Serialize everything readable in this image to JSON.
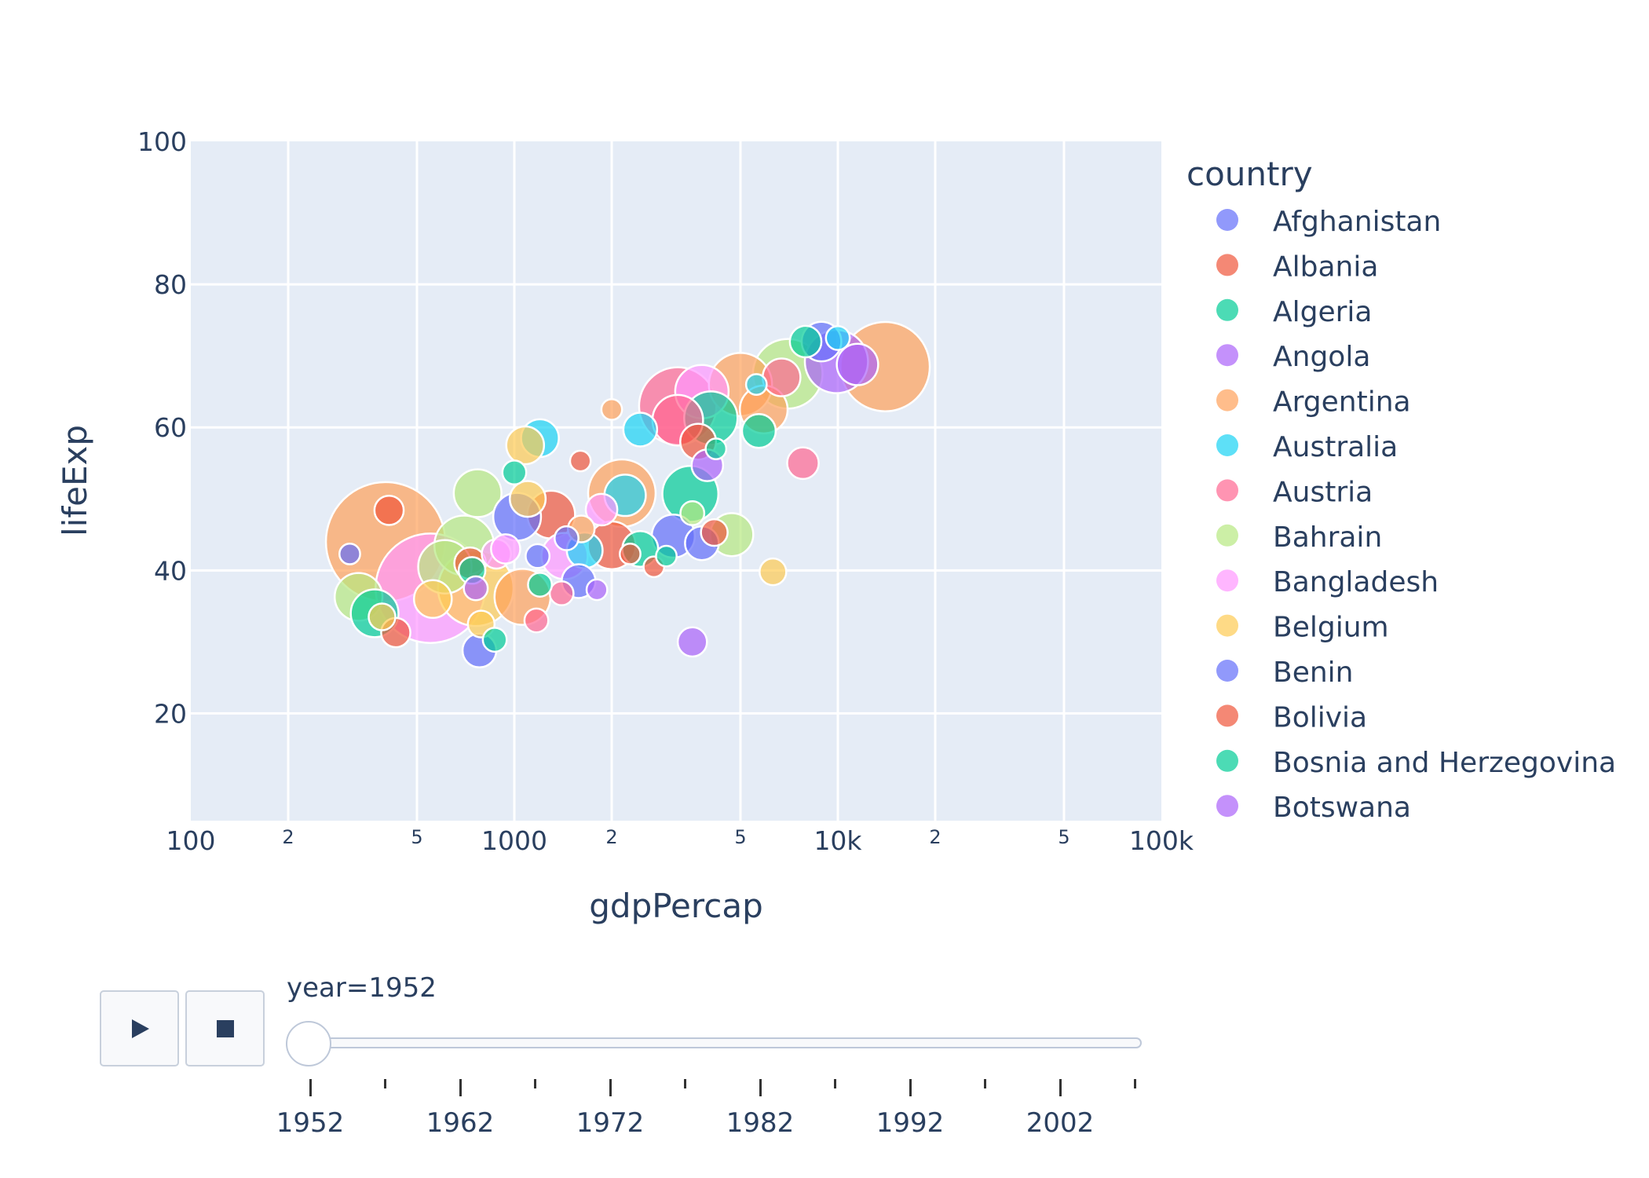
{
  "chart_data": {
    "type": "scatter",
    "title": "",
    "xlabel": "gdpPercap",
    "ylabel": "lifeExp",
    "x_scale": "log",
    "xlim": [
      100,
      100000
    ],
    "ylim": [
      5,
      100
    ],
    "x_major_ticks": [
      {
        "value": 100,
        "label": "100"
      },
      {
        "value": 1000,
        "label": "1000"
      },
      {
        "value": 10000,
        "label": "10k"
      },
      {
        "value": 100000,
        "label": "100k"
      }
    ],
    "x_minor_ticks": [
      {
        "value": 200,
        "label": "2"
      },
      {
        "value": 500,
        "label": "5"
      },
      {
        "value": 2000,
        "label": "2"
      },
      {
        "value": 5000,
        "label": "5"
      },
      {
        "value": 20000,
        "label": "2"
      },
      {
        "value": 50000,
        "label": "5"
      }
    ],
    "y_ticks": [
      20,
      40,
      60,
      80,
      100
    ],
    "grid": true,
    "legend_title": "country",
    "legend_position": "right",
    "legend": [
      {
        "name": "Afghanistan",
        "color": "#636efa"
      },
      {
        "name": "Albania",
        "color": "#EF553B"
      },
      {
        "name": "Algeria",
        "color": "#00cc96"
      },
      {
        "name": "Angola",
        "color": "#ab63fa"
      },
      {
        "name": "Argentina",
        "color": "#FFA15A"
      },
      {
        "name": "Australia",
        "color": "#19d3f3"
      },
      {
        "name": "Austria",
        "color": "#FF6692"
      },
      {
        "name": "Bahrain",
        "color": "#B6E880"
      },
      {
        "name": "Bangladesh",
        "color": "#FF97FF"
      },
      {
        "name": "Belgium",
        "color": "#FECB52"
      },
      {
        "name": "Benin",
        "color": "#636efa"
      },
      {
        "name": "Bolivia",
        "color": "#EF553B"
      },
      {
        "name": "Bosnia and Herzegovina",
        "color": "#00cc96"
      },
      {
        "name": "Botswana",
        "color": "#ab63fa"
      }
    ],
    "points": [
      {
        "x": 400,
        "y": 44.0,
        "size": 1.0,
        "color": "#FFA15A"
      },
      {
        "x": 550,
        "y": 37.5,
        "size": 0.84,
        "color": "#FF97FF"
      },
      {
        "x": 14000,
        "y": 68.5,
        "size": 0.56,
        "color": "#FFA15A"
      },
      {
        "x": 3200,
        "y": 63.0,
        "size": 0.42,
        "color": "#FF6692"
      },
      {
        "x": 7000,
        "y": 67.5,
        "size": 0.34,
        "color": "#B6E880"
      },
      {
        "x": 760,
        "y": 37.5,
        "size": 0.4,
        "color": "#FECB52"
      },
      {
        "x": 2150,
        "y": 50.8,
        "size": 0.32,
        "color": "#FFA15A"
      },
      {
        "x": 5000,
        "y": 66.0,
        "size": 0.28,
        "color": "#FFA15A"
      },
      {
        "x": 9900,
        "y": 69.2,
        "size": 0.28,
        "color": "#ab63fa"
      },
      {
        "x": 3800,
        "y": 65.0,
        "size": 0.2,
        "color": "#FF97FF"
      },
      {
        "x": 3500,
        "y": 50.7,
        "size": 0.22,
        "color": "#00cc96"
      },
      {
        "x": 4050,
        "y": 61.3,
        "size": 0.2,
        "color": "#00cc96"
      },
      {
        "x": 700,
        "y": 43.5,
        "size": 0.25,
        "color": "#B6E880"
      },
      {
        "x": 1060,
        "y": 36.3,
        "size": 0.22,
        "color": "#FFA15A"
      },
      {
        "x": 610,
        "y": 40.5,
        "size": 0.2,
        "color": "#B6E880"
      },
      {
        "x": 3200,
        "y": 61.0,
        "size": 0.18,
        "color": "#FF6692"
      },
      {
        "x": 5900,
        "y": 62.5,
        "size": 0.16,
        "color": "#FFA15A"
      },
      {
        "x": 770,
        "y": 50.8,
        "size": 0.16,
        "color": "#B6E880"
      },
      {
        "x": 330,
        "y": 36.3,
        "size": 0.16,
        "color": "#B6E880"
      },
      {
        "x": 1300,
        "y": 47.8,
        "size": 0.16,
        "color": "#EF553B"
      },
      {
        "x": 1020,
        "y": 47.5,
        "size": 0.16,
        "color": "#636efa"
      },
      {
        "x": 2000,
        "y": 43.5,
        "size": 0.16,
        "color": "#EF553B"
      },
      {
        "x": 370,
        "y": 34.0,
        "size": 0.16,
        "color": "#00cc96"
      },
      {
        "x": 1430,
        "y": 42.0,
        "size": 0.15,
        "color": "#FF97FF"
      },
      {
        "x": 8900,
        "y": 72.0,
        "size": 0.11,
        "color": "#636efa"
      },
      {
        "x": 3100,
        "y": 44.8,
        "size": 0.13,
        "color": "#636efa"
      },
      {
        "x": 2200,
        "y": 50.5,
        "size": 0.12,
        "color": "#19d3f3"
      },
      {
        "x": 4700,
        "y": 45.0,
        "size": 0.13,
        "color": "#B6E880"
      },
      {
        "x": 11500,
        "y": 68.8,
        "size": 0.12,
        "color": "#ab63fa"
      },
      {
        "x": 6700,
        "y": 67.0,
        "size": 0.1,
        "color": "#FF6692"
      },
      {
        "x": 1200,
        "y": 58.5,
        "size": 0.1,
        "color": "#19d3f3"
      },
      {
        "x": 1080,
        "y": 57.5,
        "size": 0.1,
        "color": "#FECB52"
      },
      {
        "x": 560,
        "y": 36.0,
        "size": 0.1,
        "color": "#FECB52"
      },
      {
        "x": 3700,
        "y": 58.0,
        "size": 0.09,
        "color": "#EF553B"
      },
      {
        "x": 5700,
        "y": 59.5,
        "size": 0.08,
        "color": "#00cc96"
      },
      {
        "x": 2450,
        "y": 59.7,
        "size": 0.08,
        "color": "#19d3f3"
      },
      {
        "x": 1650,
        "y": 42.8,
        "size": 0.09,
        "color": "#19d3f3"
      },
      {
        "x": 2450,
        "y": 43.0,
        "size": 0.09,
        "color": "#00cc96"
      },
      {
        "x": 1100,
        "y": 50.0,
        "size": 0.09,
        "color": "#FECB52"
      },
      {
        "x": 3800,
        "y": 43.8,
        "size": 0.08,
        "color": "#636efa"
      },
      {
        "x": 1580,
        "y": 38.5,
        "size": 0.08,
        "color": "#636efa"
      },
      {
        "x": 780,
        "y": 28.8,
        "size": 0.08,
        "color": "#636efa"
      },
      {
        "x": 3950,
        "y": 54.7,
        "size": 0.07,
        "color": "#ab63fa"
      },
      {
        "x": 7800,
        "y": 55.0,
        "size": 0.07,
        "color": "#FF6692"
      },
      {
        "x": 7950,
        "y": 72.0,
        "size": 0.07,
        "color": "#00cc96"
      },
      {
        "x": 1860,
        "y": 48.5,
        "size": 0.07,
        "color": "#FF97FF"
      },
      {
        "x": 410,
        "y": 48.4,
        "size": 0.06,
        "color": "#EF553B"
      },
      {
        "x": 730,
        "y": 41.0,
        "size": 0.07,
        "color": "#EF553B"
      },
      {
        "x": 3550,
        "y": 30.0,
        "size": 0.06,
        "color": "#ab63fa"
      },
      {
        "x": 880,
        "y": 42.3,
        "size": 0.06,
        "color": "#FF97FF"
      },
      {
        "x": 940,
        "y": 43.0,
        "size": 0.06,
        "color": "#FF97FF"
      },
      {
        "x": 6300,
        "y": 39.8,
        "size": 0.05,
        "color": "#FECB52"
      },
      {
        "x": 1610,
        "y": 45.8,
        "size": 0.05,
        "color": "#FFA15A"
      },
      {
        "x": 4150,
        "y": 45.3,
        "size": 0.05,
        "color": "#EF553B"
      },
      {
        "x": 430,
        "y": 31.3,
        "size": 0.06,
        "color": "#EF553B"
      },
      {
        "x": 740,
        "y": 40.0,
        "size": 0.05,
        "color": "#00cc96"
      },
      {
        "x": 790,
        "y": 32.5,
        "size": 0.05,
        "color": "#FECB52"
      },
      {
        "x": 390,
        "y": 33.5,
        "size": 0.05,
        "color": "#FECB52"
      },
      {
        "x": 1000,
        "y": 53.7,
        "size": 0.04,
        "color": "#00cc96"
      },
      {
        "x": 1450,
        "y": 44.5,
        "size": 0.04,
        "color": "#636efa"
      },
      {
        "x": 1400,
        "y": 36.8,
        "size": 0.04,
        "color": "#FF6692"
      },
      {
        "x": 1180,
        "y": 42.0,
        "size": 0.04,
        "color": "#636efa"
      },
      {
        "x": 1200,
        "y": 38.0,
        "size": 0.04,
        "color": "#00cc96"
      },
      {
        "x": 760,
        "y": 37.5,
        "size": 0.04,
        "color": "#ab63fa"
      },
      {
        "x": 870,
        "y": 30.3,
        "size": 0.04,
        "color": "#00cc96"
      },
      {
        "x": 3550,
        "y": 48.0,
        "size": 0.04,
        "color": "#B6E880"
      },
      {
        "x": 1170,
        "y": 33.0,
        "size": 0.04,
        "color": "#FF6692"
      },
      {
        "x": 2700,
        "y": 40.5,
        "size": 0.03,
        "color": "#EF553B"
      },
      {
        "x": 10000,
        "y": 72.5,
        "size": 0.04,
        "color": "#19d3f3"
      },
      {
        "x": 5600,
        "y": 66.0,
        "size": 0.03,
        "color": "#19d3f3"
      },
      {
        "x": 4200,
        "y": 57.0,
        "size": 0.03,
        "color": "#00cc96"
      },
      {
        "x": 2950,
        "y": 42.0,
        "size": 0.03,
        "color": "#00cc96"
      },
      {
        "x": 310,
        "y": 42.3,
        "size": 0.03,
        "color": "#636efa"
      },
      {
        "x": 2280,
        "y": 42.3,
        "size": 0.03,
        "color": "#EF553B"
      },
      {
        "x": 2000,
        "y": 62.5,
        "size": 0.03,
        "color": "#FFA15A"
      },
      {
        "x": 1600,
        "y": 55.3,
        "size": 0.03,
        "color": "#EF553B"
      },
      {
        "x": 1800,
        "y": 37.3,
        "size": 0.03,
        "color": "#ab63fa"
      }
    ]
  },
  "slider": {
    "current_label": "year=1952",
    "years": [
      "1952",
      "1962",
      "1972",
      "1982",
      "1992",
      "2002"
    ],
    "play_icon": "play-icon",
    "stop_icon": "stop-icon"
  }
}
